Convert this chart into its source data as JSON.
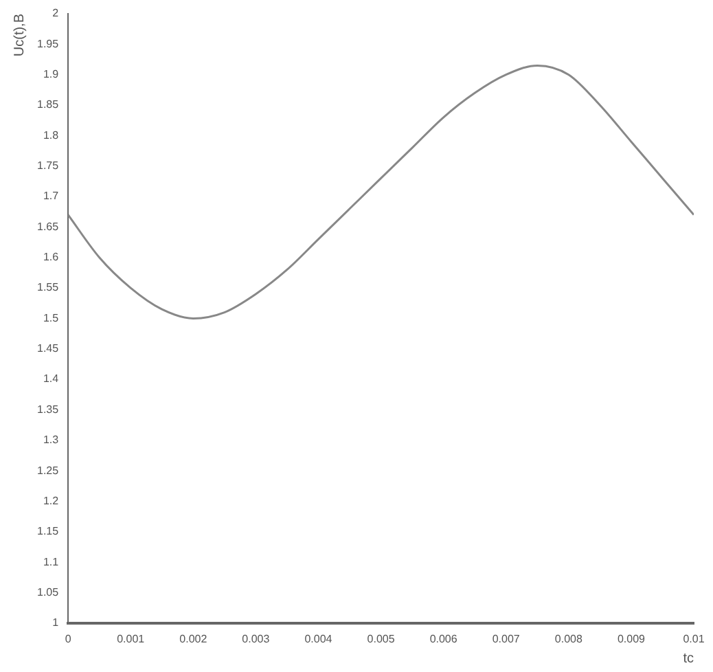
{
  "chart_data": {
    "type": "line",
    "xlabel": "tc",
    "ylabel": "Uc(t),B",
    "x": [
      0,
      0.0005,
      0.001,
      0.0015,
      0.002,
      0.0025,
      0.003,
      0.0035,
      0.004,
      0.0045,
      0.005,
      0.0055,
      0.006,
      0.0065,
      0.007,
      0.0075,
      0.008,
      0.0085,
      0.009,
      0.0095,
      0.01
    ],
    "series": [
      {
        "color": "#888888",
        "values": [
          1.67,
          1.6,
          1.55,
          1.515,
          1.5,
          1.51,
          1.54,
          1.58,
          1.63,
          1.68,
          1.73,
          1.78,
          1.83,
          1.87,
          1.9,
          1.915,
          1.9,
          1.85,
          1.79,
          1.73,
          1.67
        ]
      }
    ],
    "xlim": [
      0,
      0.01
    ],
    "xticks": [
      0,
      0.001,
      0.002,
      0.003,
      0.004,
      0.005,
      0.006,
      0.007,
      0.008,
      0.009,
      0.01
    ],
    "ylim": [
      1,
      2
    ],
    "yticks": [
      1,
      1.05,
      1.1,
      1.15,
      1.2,
      1.25,
      1.3,
      1.35,
      1.4,
      1.45,
      1.5,
      1.55,
      1.6,
      1.65,
      1.7,
      1.75,
      1.8,
      1.85,
      1.9,
      1.95,
      2
    ],
    "grid": false,
    "legend": false,
    "marker": "none",
    "line_style": "solid"
  }
}
